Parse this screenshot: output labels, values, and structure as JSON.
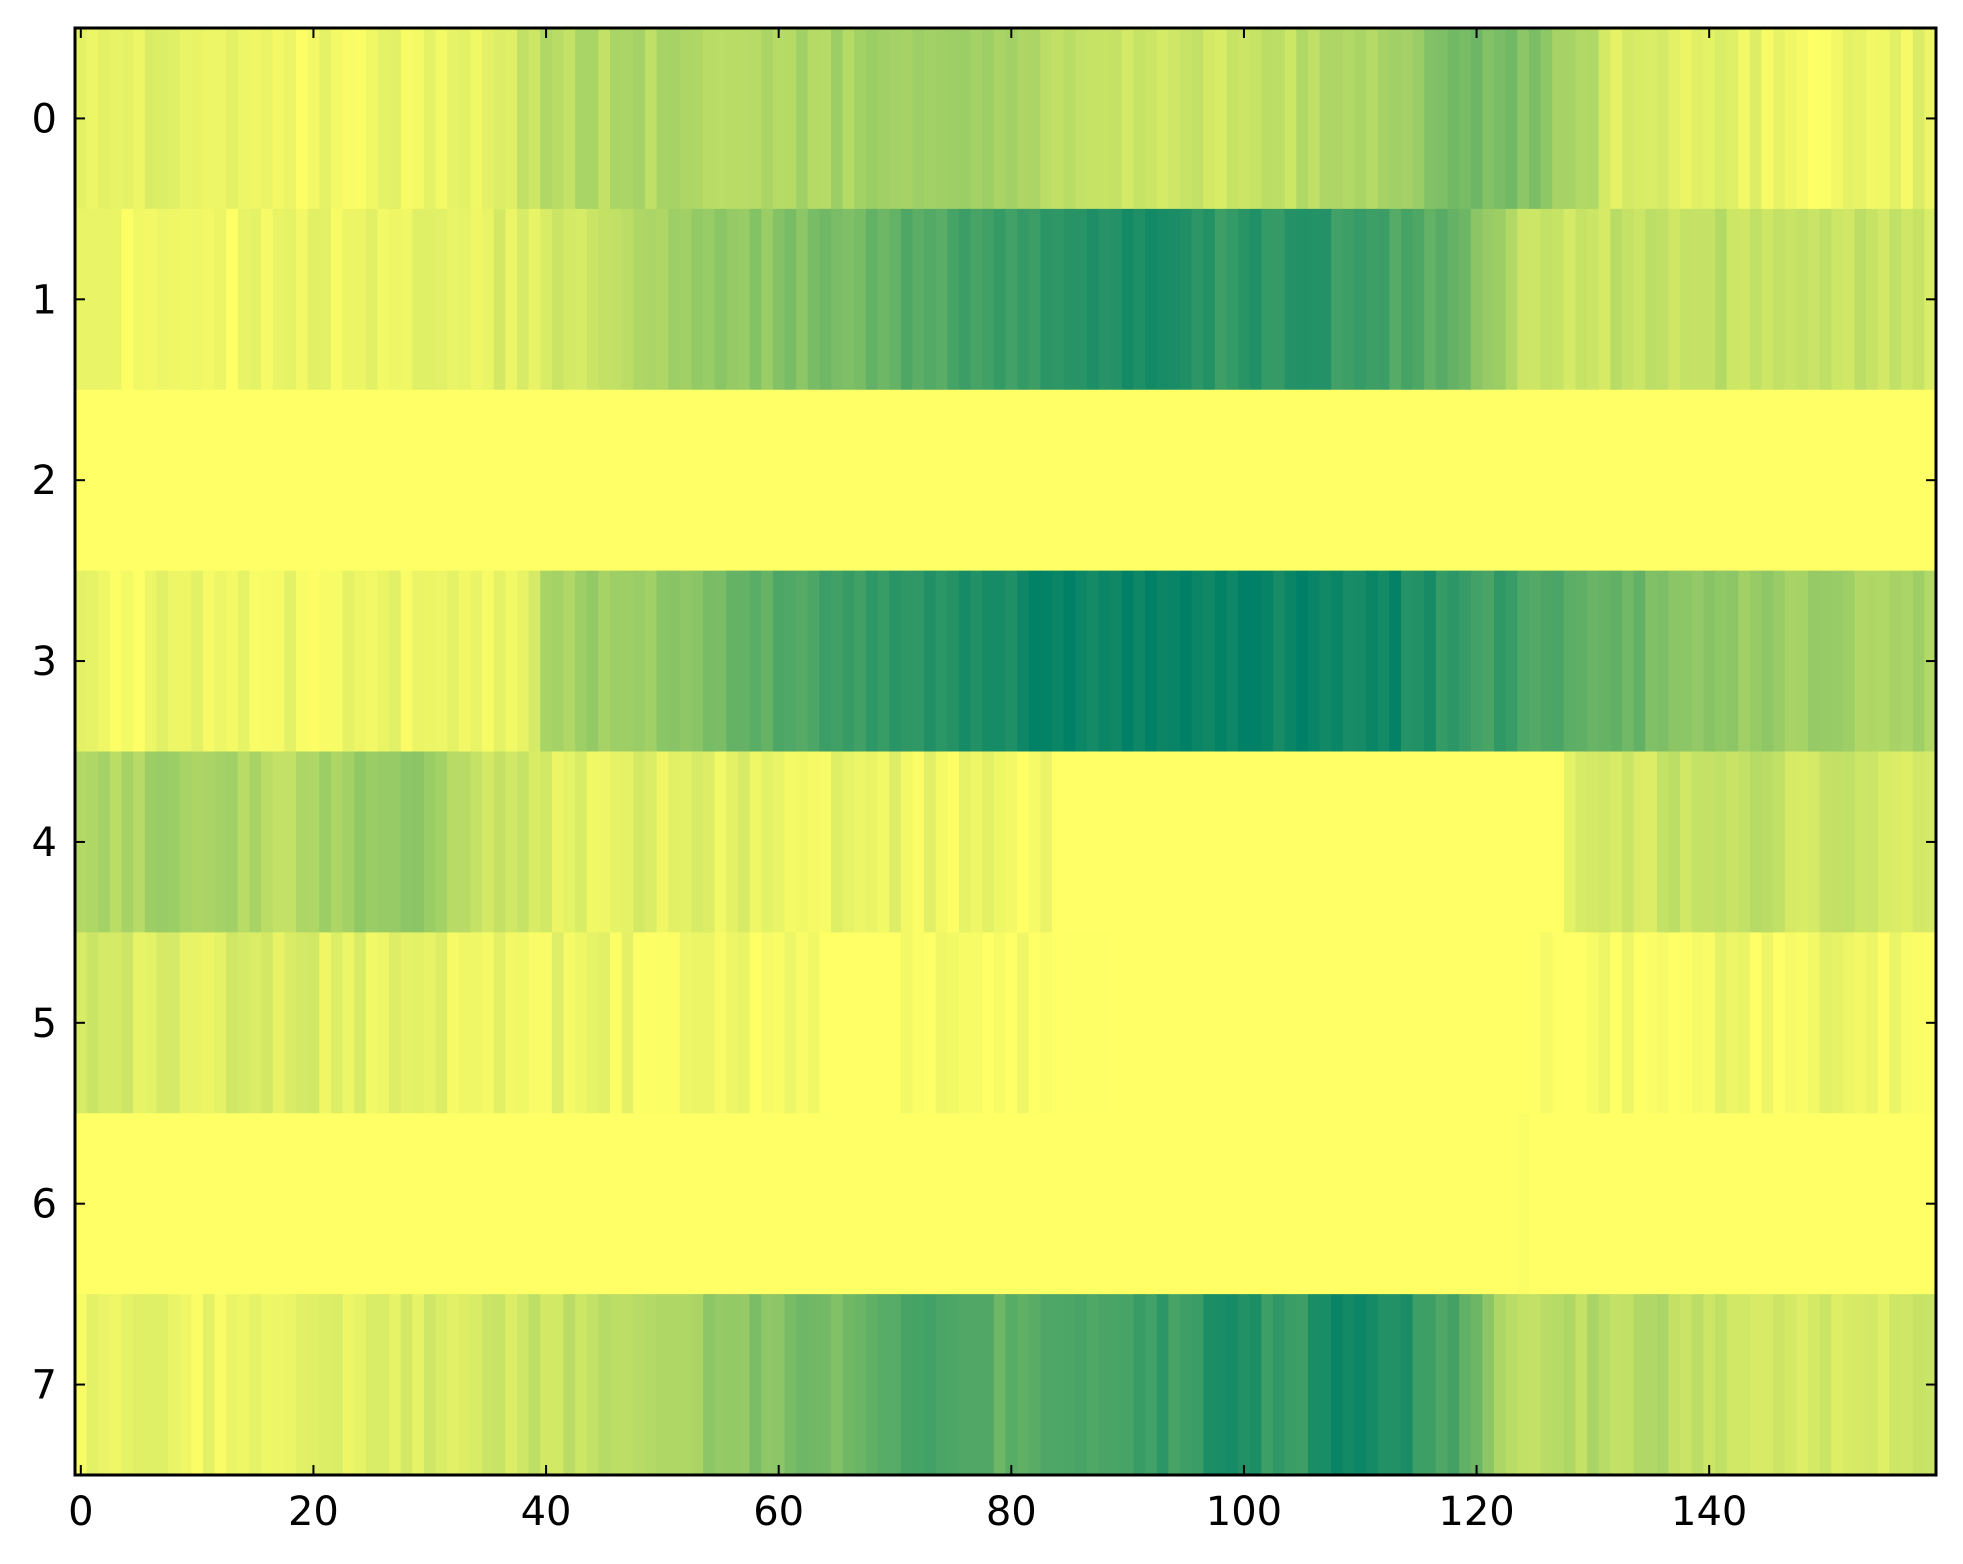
{
  "chart_data": {
    "type": "heatmap",
    "title": "",
    "xlabel": "",
    "ylabel": "",
    "n_cols": 160,
    "n_rows": 8,
    "xlim": [
      -0.5,
      159.5
    ],
    "ylim": [
      7.5,
      -0.5
    ],
    "xticks": [
      0,
      20,
      40,
      60,
      80,
      100,
      120,
      140
    ],
    "xtick_labels": [
      "0",
      "20",
      "40",
      "60",
      "80",
      "100",
      "120",
      "140"
    ],
    "yticks": [
      0,
      1,
      2,
      3,
      4,
      5,
      6,
      7
    ],
    "ytick_labels": [
      "0",
      "1",
      "2",
      "3",
      "4",
      "5",
      "6",
      "7"
    ],
    "colormap": "summer_r",
    "color_low": "#ffff66",
    "color_high": "#008066",
    "value_range": [
      0,
      1
    ],
    "grid": false,
    "colorbar": false,
    "rows": [
      {
        "row": 0,
        "profile": [
          [
            0,
            0.12
          ],
          [
            20,
            0.06
          ],
          [
            36,
            0.12
          ],
          [
            40,
            0.28
          ],
          [
            60,
            0.33
          ],
          [
            78,
            0.38
          ],
          [
            88,
            0.22
          ],
          [
            100,
            0.2
          ],
          [
            112,
            0.35
          ],
          [
            120,
            0.55
          ],
          [
            126,
            0.45
          ],
          [
            132,
            0.15
          ],
          [
            150,
            0.05
          ],
          [
            159,
            0.1
          ]
        ]
      },
      {
        "row": 1,
        "profile": [
          [
            0,
            0.05
          ],
          [
            20,
            0.06
          ],
          [
            36,
            0.12
          ],
          [
            46,
            0.22
          ],
          [
            52,
            0.38
          ],
          [
            60,
            0.45
          ],
          [
            70,
            0.62
          ],
          [
            76,
            0.75
          ],
          [
            84,
            0.78
          ],
          [
            90,
            0.9
          ],
          [
            98,
            0.8
          ],
          [
            104,
            0.85
          ],
          [
            112,
            0.72
          ],
          [
            118,
            0.62
          ],
          [
            124,
            0.2
          ],
          [
            140,
            0.25
          ],
          [
            159,
            0.2
          ]
        ]
      },
      {
        "row": 2,
        "profile": [
          [
            0,
            0.0
          ],
          [
            159,
            0.0
          ]
        ]
      },
      {
        "row": 3,
        "profile": [
          [
            0,
            0.06
          ],
          [
            20,
            0.06
          ],
          [
            38,
            0.08
          ],
          [
            40,
            0.35
          ],
          [
            50,
            0.4
          ],
          [
            54,
            0.55
          ],
          [
            60,
            0.65
          ],
          [
            70,
            0.85
          ],
          [
            86,
            0.98
          ],
          [
            100,
            0.98
          ],
          [
            112,
            0.95
          ],
          [
            118,
            0.8
          ],
          [
            126,
            0.72
          ],
          [
            132,
            0.6
          ],
          [
            140,
            0.42
          ],
          [
            159,
            0.32
          ]
        ]
      },
      {
        "row": 4,
        "profile": [
          [
            0,
            0.3
          ],
          [
            8,
            0.35
          ],
          [
            18,
            0.28
          ],
          [
            28,
            0.45
          ],
          [
            34,
            0.25
          ],
          [
            40,
            0.12
          ],
          [
            60,
            0.1
          ],
          [
            80,
            0.05
          ],
          [
            86,
            0.0
          ],
          [
            127,
            0.0
          ],
          [
            128,
            0.1
          ],
          [
            140,
            0.25
          ],
          [
            150,
            0.2
          ],
          [
            159,
            0.15
          ]
        ]
      },
      {
        "row": 5,
        "profile": [
          [
            0,
            0.15
          ],
          [
            20,
            0.12
          ],
          [
            40,
            0.08
          ],
          [
            55,
            0.04
          ],
          [
            65,
            0.02
          ],
          [
            80,
            0.01
          ],
          [
            90,
            0.0
          ],
          [
            124,
            0.0
          ],
          [
            130,
            0.02
          ],
          [
            145,
            0.06
          ],
          [
            159,
            0.05
          ]
        ]
      },
      {
        "row": 6,
        "profile": [
          [
            0,
            0.0
          ],
          [
            123,
            0.0
          ],
          [
            124,
            0.02
          ],
          [
            125,
            0.0
          ],
          [
            159,
            0.0
          ]
        ]
      },
      {
        "row": 7,
        "profile": [
          [
            0,
            0.07
          ],
          [
            20,
            0.08
          ],
          [
            36,
            0.18
          ],
          [
            50,
            0.3
          ],
          [
            56,
            0.45
          ],
          [
            66,
            0.55
          ],
          [
            72,
            0.7
          ],
          [
            80,
            0.6
          ],
          [
            86,
            0.72
          ],
          [
            94,
            0.78
          ],
          [
            100,
            0.88
          ],
          [
            104,
            0.75
          ],
          [
            108,
            0.98
          ],
          [
            114,
            0.85
          ],
          [
            120,
            0.62
          ],
          [
            122,
            0.3
          ],
          [
            135,
            0.28
          ],
          [
            150,
            0.15
          ],
          [
            159,
            0.18
          ]
        ]
      }
    ]
  }
}
